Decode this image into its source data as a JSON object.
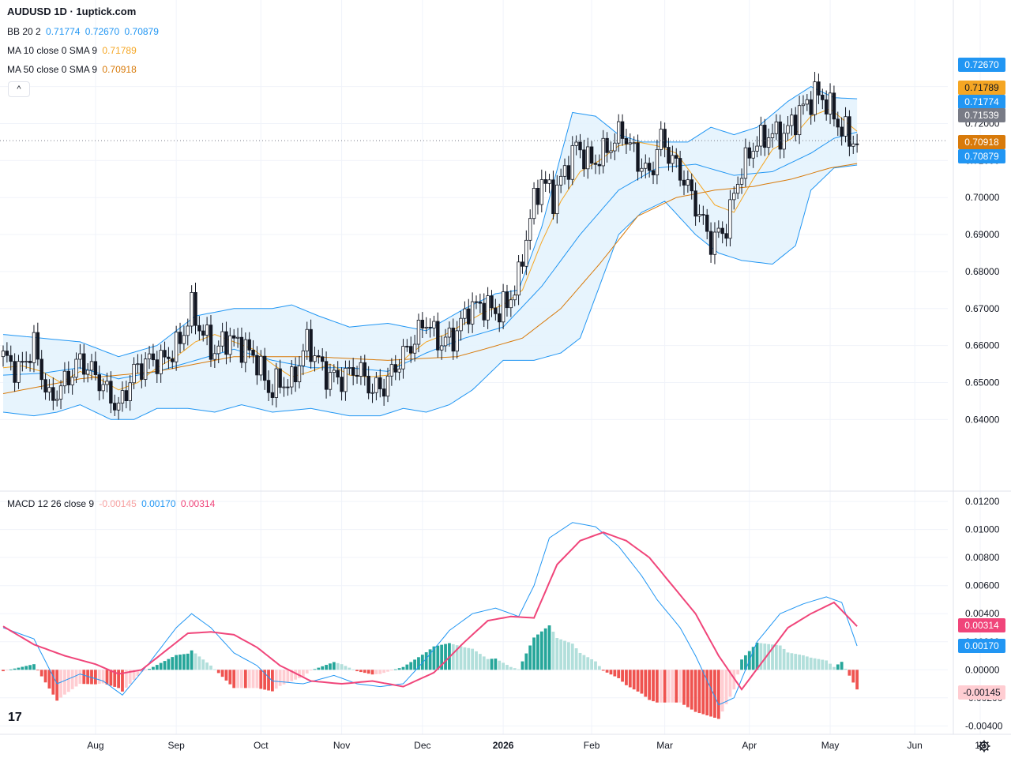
{
  "header": {
    "title": "AUDUSD 1D · 1uptick.com"
  },
  "indicators": {
    "bb": {
      "label": "BB 20 2",
      "v1": "0.71774",
      "v2": "0.72670",
      "v3": "0.70879",
      "color": "#2196f3"
    },
    "ma10": {
      "label": "MA 10 close 0 SMA 9",
      "value": "0.71789",
      "color": "#f5a623"
    },
    "ma50": {
      "label": "MA 50 close 0 SMA 9",
      "value": "0.70918",
      "color": "#d87a0a"
    },
    "macd": {
      "label": "MACD 12 26 close 9",
      "hist": "-0.00145",
      "macd": "0.00170",
      "signal": "0.00314",
      "hist_color": "#f7a1a1",
      "macd_color": "#2196f3",
      "signal_color": "#f0457a"
    }
  },
  "price_badges": {
    "bb_upper": "0.72670",
    "ma10": "0.71789",
    "bb_mid": "0.71774",
    "last": "0.71539",
    "ma50": "0.70918",
    "bb_lower": "0.70879"
  },
  "macd_badges": {
    "signal": "0.00314",
    "macd": "0.00170",
    "hist": "-0.00145"
  },
  "controls": {
    "collapse_glyph": "^",
    "logo": "17"
  },
  "chart_data": {
    "type": "candlestick",
    "price_axis": {
      "ticks": [
        "0.73000",
        "0.72000",
        "0.71000",
        "0.70000",
        "0.69000",
        "0.68000",
        "0.67000",
        "0.66000",
        "0.65000",
        "0.64000"
      ],
      "range": [
        0.6215,
        0.747
      ]
    },
    "macd_axis": {
      "ticks": [
        "0.01200",
        "0.01000",
        "0.00800",
        "0.00600",
        "0.00400",
        "0.00200",
        "0.00000",
        "-0.00200",
        "-0.00400"
      ],
      "range": [
        -0.0046,
        0.0124
      ]
    },
    "time_axis": {
      "labels": [
        "Aug",
        "Sep",
        "Oct",
        "Nov",
        "Dec",
        "2026",
        "Feb",
        "Mar",
        "Apr",
        "May",
        "Jun",
        "19"
      ],
      "label_day_index": [
        24,
        45,
        67,
        88,
        109,
        130,
        153,
        172,
        194,
        215,
        237,
        254
      ]
    },
    "close_keypoints": [
      [
        0,
        0.657
      ],
      [
        4,
        0.653
      ],
      [
        8,
        0.66
      ],
      [
        12,
        0.645
      ],
      [
        16,
        0.65
      ],
      [
        20,
        0.656
      ],
      [
        24,
        0.652
      ],
      [
        28,
        0.646
      ],
      [
        30,
        0.643
      ],
      [
        34,
        0.653
      ],
      [
        38,
        0.656
      ],
      [
        42,
        0.656
      ],
      [
        46,
        0.661
      ],
      [
        49,
        0.67
      ],
      [
        51,
        0.665
      ],
      [
        55,
        0.658
      ],
      [
        58,
        0.662
      ],
      [
        62,
        0.66
      ],
      [
        66,
        0.656
      ],
      [
        69,
        0.648
      ],
      [
        72,
        0.65
      ],
      [
        75,
        0.65
      ],
      [
        79,
        0.661
      ],
      [
        84,
        0.652
      ],
      [
        88,
        0.651
      ],
      [
        92,
        0.654
      ],
      [
        96,
        0.648
      ],
      [
        99,
        0.649
      ],
      [
        103,
        0.656
      ],
      [
        106,
        0.66
      ],
      [
        110,
        0.667
      ],
      [
        113,
        0.661
      ],
      [
        117,
        0.662
      ],
      [
        121,
        0.67
      ],
      [
        125,
        0.671
      ],
      [
        128,
        0.669
      ],
      [
        131,
        0.671
      ],
      [
        134,
        0.678
      ],
      [
        137,
        0.695
      ],
      [
        140,
        0.705
      ],
      [
        143,
        0.7
      ],
      [
        146,
        0.707
      ],
      [
        149,
        0.714
      ],
      [
        153,
        0.709
      ],
      [
        157,
        0.713
      ],
      [
        161,
        0.718
      ],
      [
        165,
        0.71
      ],
      [
        168,
        0.706
      ],
      [
        171,
        0.716
      ],
      [
        174,
        0.71
      ],
      [
        177,
        0.705
      ],
      [
        180,
        0.698
      ],
      [
        184,
        0.688
      ],
      [
        188,
        0.692
      ],
      [
        191,
        0.705
      ],
      [
        195,
        0.714
      ],
      [
        199,
        0.717
      ],
      [
        203,
        0.717
      ],
      [
        207,
        0.723
      ],
      [
        211,
        0.728
      ],
      [
        214,
        0.726
      ],
      [
        217,
        0.72
      ],
      [
        220,
        0.716
      ],
      [
        222,
        0.715
      ]
    ],
    "ma10_keypoints": [
      [
        0,
        0.654
      ],
      [
        5,
        0.6545
      ],
      [
        10,
        0.653
      ],
      [
        15,
        0.65
      ],
      [
        20,
        0.653
      ],
      [
        25,
        0.651
      ],
      [
        30,
        0.648
      ],
      [
        35,
        0.65
      ],
      [
        40,
        0.654
      ],
      [
        45,
        0.657
      ],
      [
        50,
        0.661
      ],
      [
        55,
        0.663
      ],
      [
        60,
        0.661
      ],
      [
        65,
        0.659
      ],
      [
        70,
        0.655
      ],
      [
        75,
        0.6515
      ],
      [
        80,
        0.653
      ],
      [
        85,
        0.655
      ],
      [
        90,
        0.652
      ],
      [
        95,
        0.6515
      ],
      [
        100,
        0.652
      ],
      [
        105,
        0.657
      ],
      [
        110,
        0.661
      ],
      [
        115,
        0.663
      ],
      [
        120,
        0.666
      ],
      [
        125,
        0.669
      ],
      [
        130,
        0.671
      ],
      [
        135,
        0.675
      ],
      [
        140,
        0.688
      ],
      [
        145,
        0.699
      ],
      [
        150,
        0.707
      ],
      [
        155,
        0.71
      ],
      [
        160,
        0.714
      ],
      [
        165,
        0.715
      ],
      [
        170,
        0.714
      ],
      [
        175,
        0.712
      ],
      [
        180,
        0.705
      ],
      [
        185,
        0.698
      ],
      [
        190,
        0.696
      ],
      [
        195,
        0.705
      ],
      [
        200,
        0.713
      ],
      [
        205,
        0.716
      ],
      [
        210,
        0.722
      ],
      [
        215,
        0.724
      ],
      [
        222,
        0.7179
      ]
    ],
    "ma50_keypoints": [
      [
        0,
        0.647
      ],
      [
        20,
        0.651
      ],
      [
        40,
        0.653
      ],
      [
        60,
        0.657
      ],
      [
        80,
        0.657
      ],
      [
        100,
        0.656
      ],
      [
        118,
        0.657
      ],
      [
        125,
        0.659
      ],
      [
        135,
        0.662
      ],
      [
        145,
        0.67
      ],
      [
        155,
        0.682
      ],
      [
        165,
        0.695
      ],
      [
        175,
        0.7
      ],
      [
        185,
        0.702
      ],
      [
        195,
        0.703
      ],
      [
        205,
        0.705
      ],
      [
        215,
        0.708
      ],
      [
        222,
        0.7092
      ]
    ],
    "bb_mid_keypoints": [
      [
        0,
        0.652
      ],
      [
        10,
        0.6525
      ],
      [
        20,
        0.654
      ],
      [
        30,
        0.651
      ],
      [
        40,
        0.653
      ],
      [
        50,
        0.656
      ],
      [
        60,
        0.659
      ],
      [
        70,
        0.656
      ],
      [
        80,
        0.654
      ],
      [
        90,
        0.654
      ],
      [
        100,
        0.653
      ],
      [
        110,
        0.658
      ],
      [
        120,
        0.662
      ],
      [
        130,
        0.665
      ],
      [
        140,
        0.676
      ],
      [
        150,
        0.69
      ],
      [
        160,
        0.702
      ],
      [
        170,
        0.708
      ],
      [
        180,
        0.709
      ],
      [
        190,
        0.706
      ],
      [
        200,
        0.707
      ],
      [
        210,
        0.712
      ],
      [
        216,
        0.716
      ],
      [
        222,
        0.7177
      ]
    ],
    "bb_upper_keypoints": [
      [
        0,
        0.663
      ],
      [
        10,
        0.662
      ],
      [
        20,
        0.661
      ],
      [
        30,
        0.657
      ],
      [
        40,
        0.66
      ],
      [
        50,
        0.668
      ],
      [
        60,
        0.67
      ],
      [
        70,
        0.67
      ],
      [
        75,
        0.671
      ],
      [
        82,
        0.668
      ],
      [
        90,
        0.665
      ],
      [
        100,
        0.666
      ],
      [
        110,
        0.664
      ],
      [
        120,
        0.67
      ],
      [
        128,
        0.674
      ],
      [
        134,
        0.675
      ],
      [
        140,
        0.692
      ],
      [
        148,
        0.723
      ],
      [
        154,
        0.722
      ],
      [
        160,
        0.717
      ],
      [
        166,
        0.715
      ],
      [
        172,
        0.715
      ],
      [
        178,
        0.715
      ],
      [
        184,
        0.719
      ],
      [
        190,
        0.717
      ],
      [
        196,
        0.719
      ],
      [
        204,
        0.726
      ],
      [
        210,
        0.73
      ],
      [
        216,
        0.727
      ],
      [
        222,
        0.7267
      ]
    ],
    "bb_lower_keypoints": [
      [
        0,
        0.642
      ],
      [
        8,
        0.641
      ],
      [
        14,
        0.642
      ],
      [
        20,
        0.644
      ],
      [
        28,
        0.64
      ],
      [
        34,
        0.64
      ],
      [
        40,
        0.643
      ],
      [
        48,
        0.643
      ],
      [
        55,
        0.642
      ],
      [
        62,
        0.644
      ],
      [
        70,
        0.642
      ],
      [
        80,
        0.643
      ],
      [
        90,
        0.641
      ],
      [
        98,
        0.641
      ],
      [
        104,
        0.643
      ],
      [
        110,
        0.642
      ],
      [
        116,
        0.644
      ],
      [
        122,
        0.648
      ],
      [
        130,
        0.656
      ],
      [
        138,
        0.656
      ],
      [
        145,
        0.658
      ],
      [
        150,
        0.662
      ],
      [
        155,
        0.676
      ],
      [
        160,
        0.69
      ],
      [
        166,
        0.696
      ],
      [
        172,
        0.699
      ],
      [
        180,
        0.69
      ],
      [
        186,
        0.685
      ],
      [
        192,
        0.683
      ],
      [
        200,
        0.682
      ],
      [
        206,
        0.687
      ],
      [
        210,
        0.702
      ],
      [
        216,
        0.708
      ],
      [
        222,
        0.7088
      ]
    ],
    "macd_keypoints": [
      [
        0,
        0.003
      ],
      [
        8,
        0.0022
      ],
      [
        14,
        -0.001
      ],
      [
        20,
        -0.0003
      ],
      [
        26,
        -0.0008
      ],
      [
        31,
        -0.0018
      ],
      [
        38,
        0.0005
      ],
      [
        45,
        0.003
      ],
      [
        49,
        0.004
      ],
      [
        54,
        0.003
      ],
      [
        60,
        0.0012
      ],
      [
        66,
        0.0003
      ],
      [
        70,
        -0.0008
      ],
      [
        78,
        -0.001
      ],
      [
        86,
        -0.0004
      ],
      [
        92,
        -0.001
      ],
      [
        98,
        -0.0012
      ],
      [
        104,
        -0.001
      ],
      [
        110,
        0.0008
      ],
      [
        116,
        0.0028
      ],
      [
        122,
        0.004
      ],
      [
        128,
        0.0044
      ],
      [
        134,
        0.0038
      ],
      [
        138,
        0.006
      ],
      [
        142,
        0.0094
      ],
      [
        148,
        0.0105
      ],
      [
        154,
        0.0102
      ],
      [
        160,
        0.0088
      ],
      [
        166,
        0.0067
      ],
      [
        170,
        0.005
      ],
      [
        176,
        0.003
      ],
      [
        180,
        0.001
      ],
      [
        186,
        -0.0025
      ],
      [
        190,
        -0.002
      ],
      [
        196,
        0.002
      ],
      [
        202,
        0.004
      ],
      [
        208,
        0.0047
      ],
      [
        214,
        0.0052
      ],
      [
        218,
        0.0048
      ],
      [
        222,
        0.0017
      ]
    ],
    "signal_keypoints": [
      [
        0,
        0.0031
      ],
      [
        8,
        0.0018
      ],
      [
        16,
        0.001
      ],
      [
        24,
        0.0004
      ],
      [
        30,
        -0.0003
      ],
      [
        36,
        0.0
      ],
      [
        42,
        0.0013
      ],
      [
        48,
        0.0026
      ],
      [
        54,
        0.0027
      ],
      [
        60,
        0.0025
      ],
      [
        66,
        0.0016
      ],
      [
        72,
        0.0003
      ],
      [
        80,
        -0.0008
      ],
      [
        88,
        -0.001
      ],
      [
        96,
        -0.0008
      ],
      [
        104,
        -0.0012
      ],
      [
        112,
        -0.0002
      ],
      [
        120,
        0.002
      ],
      [
        126,
        0.0035
      ],
      [
        132,
        0.0038
      ],
      [
        138,
        0.0037
      ],
      [
        144,
        0.0075
      ],
      [
        150,
        0.0092
      ],
      [
        156,
        0.0098
      ],
      [
        162,
        0.0092
      ],
      [
        168,
        0.008
      ],
      [
        174,
        0.006
      ],
      [
        180,
        0.004
      ],
      [
        186,
        0.001
      ],
      [
        192,
        -0.0014
      ],
      [
        198,
        0.0008
      ],
      [
        204,
        0.003
      ],
      [
        210,
        0.004
      ],
      [
        216,
        0.0048
      ],
      [
        222,
        0.0031
      ]
    ]
  }
}
